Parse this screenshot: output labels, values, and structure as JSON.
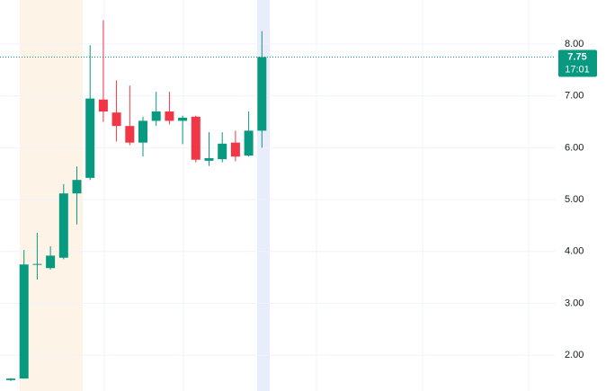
{
  "chart_data": {
    "type": "candlestick",
    "up_color": "#089981",
    "down_color": "#f23645",
    "series": {
      "open": [
        1.52,
        1.55,
        3.75,
        3.68,
        3.88,
        5.12,
        5.42,
        6.93,
        6.68,
        6.42,
        6.1,
        6.52,
        6.7,
        6.52,
        6.6,
        5.75,
        5.78,
        6.1,
        5.85,
        6.33
      ],
      "high": [
        1.56,
        4.03,
        4.36,
        4.1,
        5.3,
        5.64,
        7.98,
        8.46,
        7.3,
        7.2,
        6.6,
        7.08,
        7.08,
        6.62,
        6.62,
        6.3,
        6.3,
        6.33,
        6.7,
        8.25
      ],
      "low": [
        1.5,
        1.55,
        3.46,
        3.65,
        3.85,
        4.52,
        5.38,
        6.5,
        6.12,
        6.05,
        5.83,
        6.42,
        6.45,
        6.07,
        5.72,
        5.65,
        5.72,
        5.74,
        5.83,
        6.0
      ],
      "close": [
        1.55,
        3.75,
        3.76,
        3.92,
        5.12,
        5.38,
        6.95,
        6.7,
        6.42,
        6.1,
        6.52,
        6.7,
        6.52,
        6.58,
        5.77,
        5.8,
        6.08,
        5.83,
        6.33,
        7.75
      ]
    },
    "ylim": [
      1.31,
      8.85
    ],
    "yticks": [
      {
        "value": 2,
        "label": "2.00"
      },
      {
        "value": 3,
        "label": "3.00"
      },
      {
        "value": 4,
        "label": "4.00"
      },
      {
        "value": 5,
        "label": "5.00"
      },
      {
        "value": 6,
        "label": "6.00"
      },
      {
        "value": 7,
        "label": "7.00"
      },
      {
        "value": 8,
        "label": "8.00"
      }
    ],
    "grid": true,
    "last_price": 7.75,
    "countdown": "17:01"
  }
}
